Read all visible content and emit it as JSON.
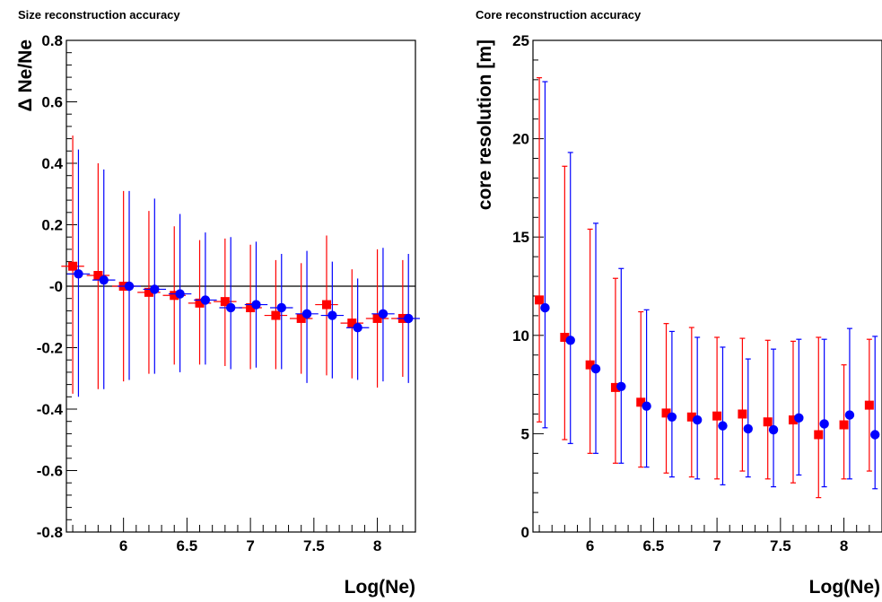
{
  "chart_data": [
    {
      "type": "scatter",
      "title": "Size reconstruction accuracy",
      "xlabel": "Log(Ne)",
      "ylabel": "Δ Ne/Ne",
      "xlim": [
        5.55,
        8.3
      ],
      "ylim": [
        -0.8,
        0.8
      ],
      "x_ticks": [
        6,
        6.5,
        7,
        7.5,
        8
      ],
      "x_tick_labels": [
        "6",
        "6.5",
        "7",
        "7.5",
        "8"
      ],
      "y_ticks": [
        -0.8,
        -0.6,
        -0.4,
        -0.2,
        0,
        0.2,
        0.4,
        0.6,
        0.8
      ],
      "y_tick_labels": [
        "-0.8",
        "-0.6",
        "-0.4",
        "-0.2",
        "-0",
        "0.2",
        "0.4",
        "0.6",
        "0.8"
      ],
      "reference_line_y": 0,
      "grid": false,
      "legend": false,
      "series": [
        {
          "marker": "square",
          "color": "#ff0000",
          "points": [
            {
              "x": 5.6,
              "y": 0.065,
              "lo": -0.35,
              "hi": 0.49
            },
            {
              "x": 5.8,
              "y": 0.035,
              "lo": -0.335,
              "hi": 0.4
            },
            {
              "x": 6.0,
              "y": 0.0,
              "lo": -0.31,
              "hi": 0.31
            },
            {
              "x": 6.2,
              "y": -0.02,
              "lo": -0.285,
              "hi": 0.245
            },
            {
              "x": 6.4,
              "y": -0.03,
              "lo": -0.255,
              "hi": 0.195
            },
            {
              "x": 6.6,
              "y": -0.055,
              "lo": -0.255,
              "hi": 0.15
            },
            {
              "x": 6.8,
              "y": -0.05,
              "lo": -0.26,
              "hi": 0.155
            },
            {
              "x": 7.0,
              "y": -0.07,
              "lo": -0.27,
              "hi": 0.135
            },
            {
              "x": 7.2,
              "y": -0.095,
              "lo": -0.27,
              "hi": 0.085
            },
            {
              "x": 7.4,
              "y": -0.105,
              "lo": -0.285,
              "hi": 0.075
            },
            {
              "x": 7.6,
              "y": -0.06,
              "lo": -0.29,
              "hi": 0.165
            },
            {
              "x": 7.8,
              "y": -0.12,
              "lo": -0.3,
              "hi": 0.055
            },
            {
              "x": 8.0,
              "y": -0.105,
              "lo": -0.33,
              "hi": 0.12
            },
            {
              "x": 8.2,
              "y": -0.105,
              "lo": -0.295,
              "hi": 0.085
            }
          ]
        },
        {
          "marker": "circle",
          "color": "#0000ff",
          "points": [
            {
              "x": 5.645,
              "y": 0.04,
              "lo": -0.36,
              "hi": 0.445
            },
            {
              "x": 5.845,
              "y": 0.02,
              "lo": -0.335,
              "hi": 0.38
            },
            {
              "x": 6.045,
              "y": 0.0,
              "lo": -0.305,
              "hi": 0.31
            },
            {
              "x": 6.245,
              "y": -0.01,
              "lo": -0.285,
              "hi": 0.285
            },
            {
              "x": 6.445,
              "y": -0.025,
              "lo": -0.28,
              "hi": 0.235
            },
            {
              "x": 6.645,
              "y": -0.045,
              "lo": -0.255,
              "hi": 0.175
            },
            {
              "x": 6.845,
              "y": -0.07,
              "lo": -0.27,
              "hi": 0.16
            },
            {
              "x": 7.045,
              "y": -0.06,
              "lo": -0.265,
              "hi": 0.145
            },
            {
              "x": 7.245,
              "y": -0.07,
              "lo": -0.27,
              "hi": 0.105
            },
            {
              "x": 7.445,
              "y": -0.09,
              "lo": -0.315,
              "hi": 0.115
            },
            {
              "x": 7.645,
              "y": -0.095,
              "lo": -0.3,
              "hi": 0.08
            },
            {
              "x": 7.845,
              "y": -0.135,
              "lo": -0.305,
              "hi": 0.025
            },
            {
              "x": 8.045,
              "y": -0.09,
              "lo": -0.31,
              "hi": 0.125
            },
            {
              "x": 8.245,
              "y": -0.105,
              "lo": -0.315,
              "hi": 0.105
            }
          ]
        }
      ]
    },
    {
      "type": "scatter",
      "title": "Core reconstruction accuracy",
      "xlabel": "Log(Ne)",
      "ylabel": "core resolution [m]",
      "xlim": [
        5.55,
        8.3
      ],
      "ylim": [
        0,
        25
      ],
      "x_ticks": [
        6,
        6.5,
        7,
        7.5,
        8
      ],
      "x_tick_labels": [
        "6",
        "6.5",
        "7",
        "7.5",
        "8"
      ],
      "y_ticks": [
        0,
        5,
        10,
        15,
        20,
        25
      ],
      "y_tick_labels": [
        "0",
        "5",
        "10",
        "15",
        "20",
        "25"
      ],
      "grid": false,
      "legend": false,
      "series": [
        {
          "marker": "square",
          "color": "#ff0000",
          "points": [
            {
              "x": 5.6,
              "y": 11.8,
              "lo": 5.6,
              "hi": 23.1
            },
            {
              "x": 5.8,
              "y": 9.9,
              "lo": 4.7,
              "hi": 18.6
            },
            {
              "x": 6.0,
              "y": 8.5,
              "lo": 4.0,
              "hi": 15.4
            },
            {
              "x": 6.2,
              "y": 7.35,
              "lo": 3.5,
              "hi": 12.9
            },
            {
              "x": 6.4,
              "y": 6.6,
              "lo": 3.3,
              "hi": 11.2
            },
            {
              "x": 6.6,
              "y": 6.05,
              "lo": 3.0,
              "hi": 10.6
            },
            {
              "x": 6.8,
              "y": 5.85,
              "lo": 2.8,
              "hi": 10.4
            },
            {
              "x": 7.0,
              "y": 5.9,
              "lo": 2.7,
              "hi": 9.9
            },
            {
              "x": 7.2,
              "y": 6.0,
              "lo": 3.1,
              "hi": 9.85
            },
            {
              "x": 7.4,
              "y": 5.6,
              "lo": 2.7,
              "hi": 9.75
            },
            {
              "x": 7.6,
              "y": 5.7,
              "lo": 2.5,
              "hi": 9.7
            },
            {
              "x": 7.8,
              "y": 4.95,
              "lo": 1.75,
              "hi": 9.9
            },
            {
              "x": 8.0,
              "y": 5.45,
              "lo": 2.7,
              "hi": 8.5
            },
            {
              "x": 8.2,
              "y": 6.45,
              "lo": 3.1,
              "hi": 9.8
            }
          ]
        },
        {
          "marker": "circle",
          "color": "#0000ff",
          "points": [
            {
              "x": 5.645,
              "y": 11.4,
              "lo": 5.3,
              "hi": 22.9
            },
            {
              "x": 5.845,
              "y": 9.75,
              "lo": 4.5,
              "hi": 19.3
            },
            {
              "x": 6.045,
              "y": 8.3,
              "lo": 4.0,
              "hi": 15.7
            },
            {
              "x": 6.245,
              "y": 7.4,
              "lo": 3.5,
              "hi": 13.4
            },
            {
              "x": 6.445,
              "y": 6.4,
              "lo": 3.3,
              "hi": 11.3
            },
            {
              "x": 6.645,
              "y": 5.85,
              "lo": 2.8,
              "hi": 10.2
            },
            {
              "x": 6.845,
              "y": 5.7,
              "lo": 2.7,
              "hi": 9.9
            },
            {
              "x": 7.045,
              "y": 5.4,
              "lo": 2.4,
              "hi": 9.4
            },
            {
              "x": 7.245,
              "y": 5.25,
              "lo": 2.8,
              "hi": 8.8
            },
            {
              "x": 7.445,
              "y": 5.2,
              "lo": 2.3,
              "hi": 9.3
            },
            {
              "x": 7.645,
              "y": 5.8,
              "lo": 2.9,
              "hi": 9.8
            },
            {
              "x": 7.845,
              "y": 5.5,
              "lo": 2.3,
              "hi": 9.8
            },
            {
              "x": 8.045,
              "y": 5.95,
              "lo": 2.7,
              "hi": 10.35
            },
            {
              "x": 8.245,
              "y": 4.95,
              "lo": 2.2,
              "hi": 9.95
            }
          ]
        }
      ]
    }
  ]
}
